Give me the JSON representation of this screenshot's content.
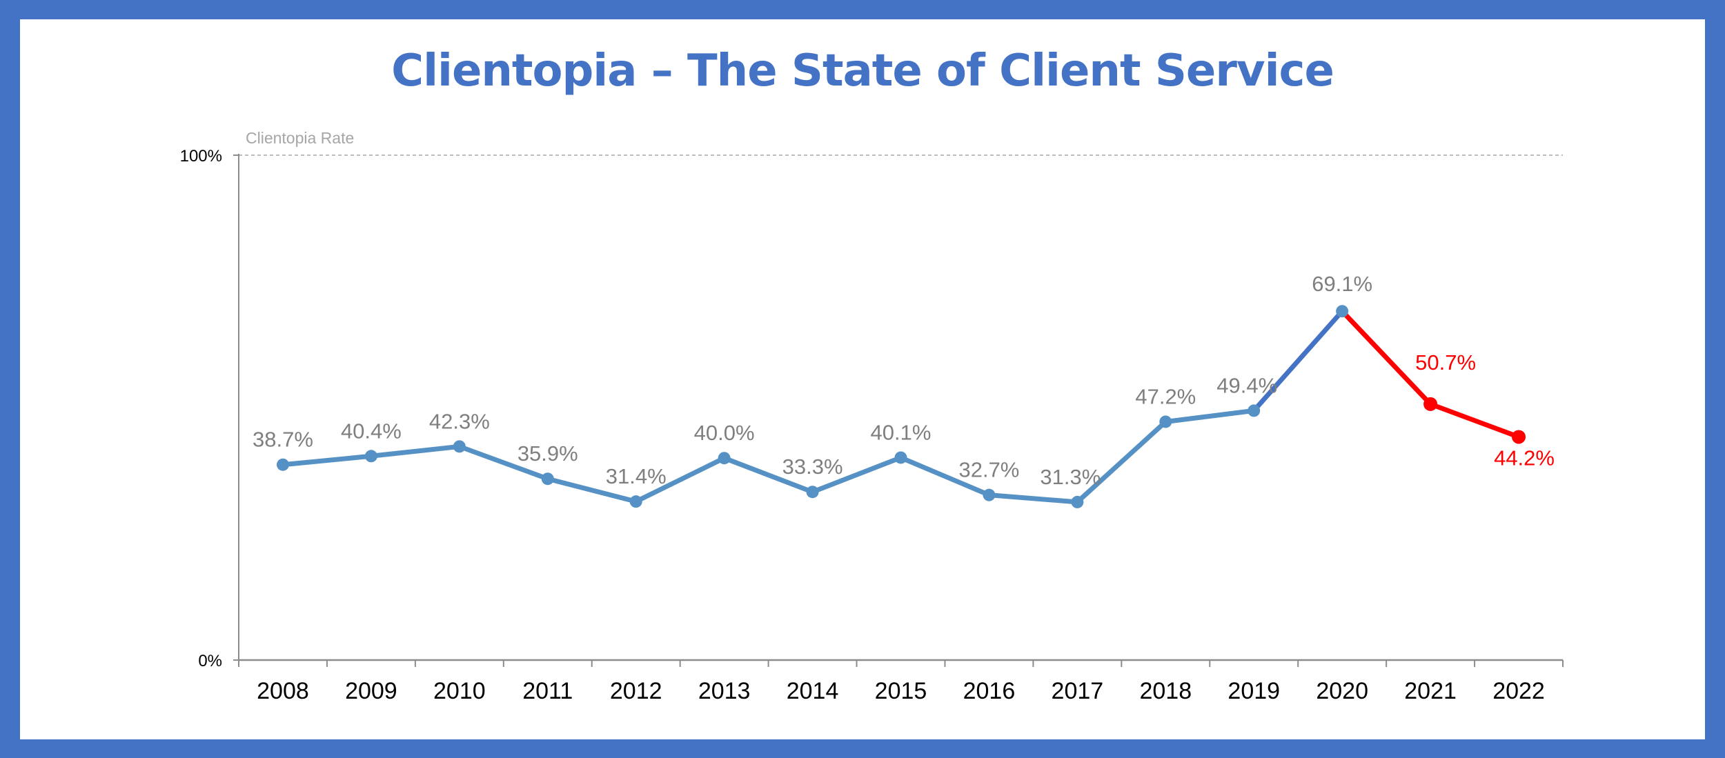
{
  "title": "Clientopia – The State of Client Service",
  "colors": {
    "frame": "#4472c4",
    "title": "#4472c4",
    "line_main": "#5591c4",
    "line_rise": "#4472c4",
    "line_decline": "#ff0000",
    "label_gray": "#7f7f7f",
    "axis": "#8c8c8c"
  },
  "chart_data": {
    "type": "line",
    "title": "Clientopia – The State of Client Service",
    "series_caption": "Clientopia Rate",
    "categories": [
      "2008",
      "2009",
      "2010",
      "2011",
      "2012",
      "2013",
      "2014",
      "2015",
      "2016",
      "2017",
      "2018",
      "2019",
      "2020",
      "2021",
      "2022"
    ],
    "series": [
      {
        "name": "Clientopia Rate",
        "values": [
          38.7,
          40.4,
          42.3,
          35.9,
          31.4,
          40.0,
          33.3,
          40.1,
          32.7,
          31.3,
          47.2,
          49.4,
          69.1,
          50.7,
          44.2
        ],
        "labels": [
          "38.7%",
          "40.4%",
          "42.3%",
          "35.9%",
          "31.4%",
          "40.0%",
          "33.3%",
          "40.1%",
          "32.7%",
          "31.3%",
          "47.2%",
          "49.4%",
          "69.1%",
          "50.7%",
          "44.2%"
        ]
      }
    ],
    "highlight": {
      "decline_from_index": 12,
      "decline_points": [
        13,
        14
      ]
    },
    "ylim": [
      0,
      100
    ],
    "yticks": [
      {
        "value": 0,
        "label": "0%"
      },
      {
        "value": 100,
        "label": "100%"
      }
    ],
    "grid": "dashed line at 100%",
    "legend": "none"
  }
}
